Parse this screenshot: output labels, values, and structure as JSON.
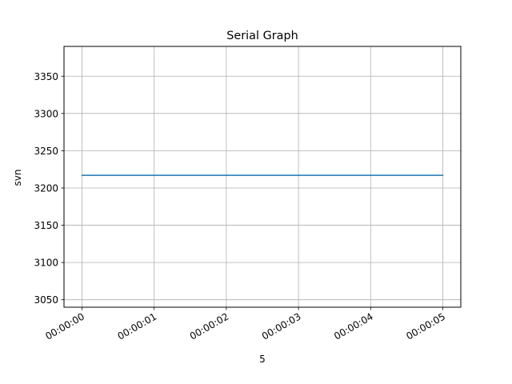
{
  "chart_data": {
    "type": "line",
    "title": "Serial Graph",
    "xlabel": "5",
    "ylabel": "svn",
    "x": [
      "00:00:00",
      "00:00:01",
      "00:00:02",
      "00:00:03",
      "00:00:04",
      "00:00:05"
    ],
    "xlim": [
      "00:00:00",
      "00:00:05"
    ],
    "ylim": [
      3040,
      3390
    ],
    "y_ticks": [
      3050,
      3100,
      3150,
      3200,
      3250,
      3300,
      3350
    ],
    "series": [
      {
        "values": [
          3217,
          3217,
          3217,
          3217,
          3217,
          3217
        ],
        "color": "#1f77b4"
      }
    ],
    "grid": true,
    "legend": false
  }
}
